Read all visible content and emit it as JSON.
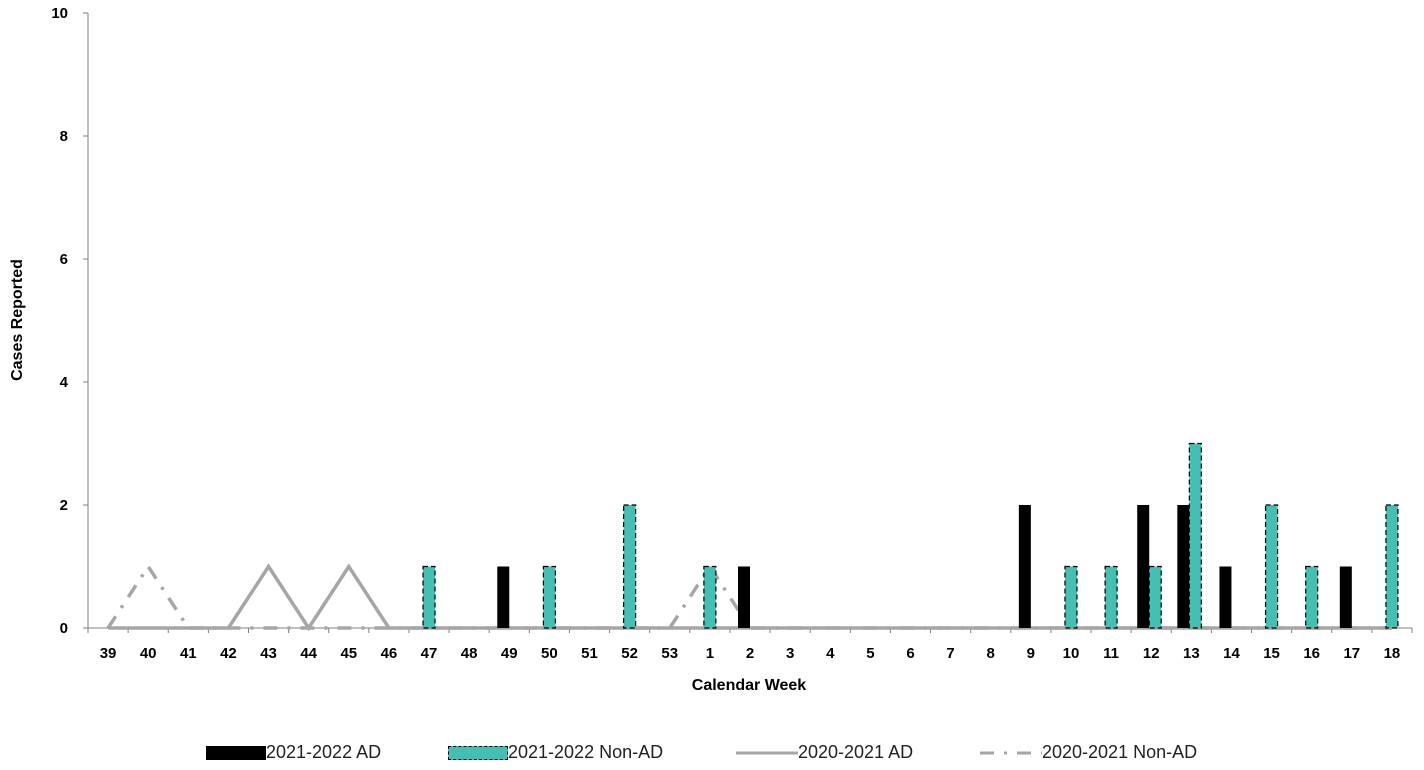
{
  "chart_data": {
    "type": "bar",
    "title": "",
    "xlabel": "Calendar Week",
    "ylabel": "Cases Reported",
    "ylim": [
      0,
      10
    ],
    "yticks": [
      "0",
      "2",
      "4",
      "6",
      "8",
      "10"
    ],
    "categories": [
      "39",
      "40",
      "41",
      "42",
      "43",
      "44",
      "45",
      "46",
      "47",
      "48",
      "49",
      "50",
      "51",
      "52",
      "53",
      "1",
      "2",
      "3",
      "4",
      "5",
      "6",
      "7",
      "8",
      "9",
      "10",
      "11",
      "12",
      "13",
      "14",
      "15",
      "16",
      "17",
      "18"
    ],
    "series": [
      {
        "name": "2021-2022 AD",
        "kind": "bar",
        "color": "#000000",
        "values": [
          0,
          0,
          0,
          0,
          0,
          0,
          0,
          0,
          0,
          0,
          1,
          0,
          0,
          0,
          0,
          0,
          1,
          0,
          0,
          0,
          0,
          0,
          0,
          2,
          0,
          0,
          2,
          2,
          1,
          0,
          0,
          1,
          0
        ]
      },
      {
        "name": "2021-2022 Non-AD",
        "kind": "bar",
        "color": "#45BFB1",
        "values": [
          0,
          0,
          0,
          0,
          0,
          0,
          0,
          0,
          1,
          0,
          0,
          1,
          0,
          2,
          0,
          1,
          0,
          0,
          0,
          0,
          0,
          0,
          0,
          0,
          1,
          1,
          1,
          3,
          0,
          2,
          1,
          0,
          2
        ]
      },
      {
        "name": "2020-2021 AD",
        "kind": "line",
        "color": "#A6A6A6",
        "values": [
          0,
          0,
          0,
          0,
          1,
          0,
          1,
          0,
          0,
          0,
          0,
          0,
          0,
          0,
          0,
          0,
          0,
          0,
          0,
          0,
          0,
          0,
          0,
          0,
          0,
          0,
          0,
          0,
          0,
          0,
          0,
          0,
          0
        ]
      },
      {
        "name": "2020-2021 Non-AD",
        "kind": "line-dashdot",
        "color": "#A6A6A6",
        "values": [
          0,
          1,
          0,
          0,
          0,
          0,
          0,
          0,
          0,
          0,
          0,
          0,
          0,
          0,
          0,
          1,
          0,
          0,
          0,
          0,
          0,
          0,
          0,
          0,
          0,
          0,
          0,
          0,
          0,
          0,
          0,
          0,
          0
        ]
      }
    ],
    "grid": false,
    "legend_position": "bottom"
  }
}
